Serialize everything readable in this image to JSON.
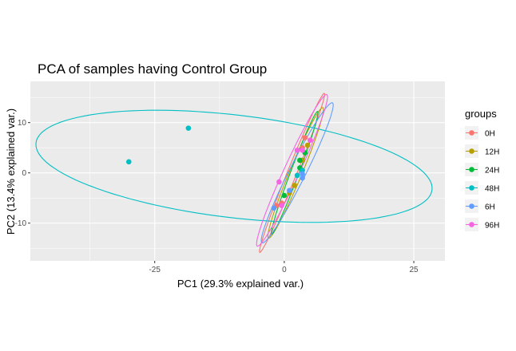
{
  "chart_data": {
    "type": "scatter",
    "title": "PCA of samples having Control Group",
    "xlabel": "PC1 (29.3% explained var.)",
    "ylabel": "PC2 (13.4% explained var.)",
    "xlim": [
      -49,
      31
    ],
    "ylim": [
      -17.5,
      18.2
    ],
    "x_ticks": [
      -25,
      0,
      25
    ],
    "x_tick_labels": [
      "-25",
      "0",
      "25"
    ],
    "y_ticks": [
      -10,
      0,
      10
    ],
    "y_tick_labels": [
      "-10",
      "0",
      "10"
    ],
    "grid": true,
    "legend": {
      "title": "groups",
      "position": "right"
    },
    "series": [
      {
        "name": "0H",
        "color": "#F8766D",
        "points": [
          [
            -1.5,
            -6.5
          ],
          [
            -0.5,
            -6.0
          ],
          [
            4.0,
            7.0
          ],
          [
            3.5,
            5.0
          ]
        ],
        "ellipse": {
          "cx": 1.5,
          "cy": 0.0,
          "rx": 17.0,
          "ry": 0.9,
          "angle": 68.5
        }
      },
      {
        "name": "12H",
        "color": "#B79F00",
        "points": [
          [
            2.0,
            -2.5
          ],
          [
            3.5,
            2.5
          ],
          [
            4.5,
            5.5
          ],
          [
            1.0,
            -4.0
          ]
        ],
        "ellipse": {
          "cx": 2.2,
          "cy": 0.0,
          "rx": 14.0,
          "ry": 1.2,
          "angle": 68
        }
      },
      {
        "name": "24H",
        "color": "#00BA38",
        "points": [
          [
            0.0,
            -4.5
          ],
          [
            3.0,
            1.0
          ],
          [
            3.0,
            2.5
          ],
          [
            4.0,
            4.0
          ]
        ],
        "ellipse": {
          "cx": 2.0,
          "cy": 0.0,
          "rx": 13.0,
          "ry": 0.8,
          "angle": 70
        }
      },
      {
        "name": "48H",
        "color": "#00BFC4",
        "points": [
          [
            -30.0,
            2.2
          ],
          [
            -18.5,
            8.9
          ],
          [
            2.5,
            -0.5
          ],
          [
            3.5,
            0.5
          ]
        ],
        "ellipse": {
          "cx": -9.7,
          "cy": 1.3,
          "rx": 38.5,
          "ry": 10.2,
          "angle": -7
        }
      },
      {
        "name": "6H",
        "color": "#619CFF",
        "points": [
          [
            -2.0,
            -7.0
          ],
          [
            1.0,
            -3.5
          ],
          [
            3.5,
            -0.2
          ],
          [
            3.5,
            -1.0
          ]
        ],
        "ellipse": {
          "cx": 2.5,
          "cy": 0.0,
          "rx": 15.5,
          "ry": 1.6,
          "angle": 64
        }
      },
      {
        "name": "96H",
        "color": "#F564E3",
        "points": [
          [
            -1.0,
            -1.8
          ],
          [
            2.5,
            4.5
          ],
          [
            3.5,
            4.5
          ],
          [
            5.0,
            6.5
          ],
          [
            -0.5,
            -6.5
          ]
        ],
        "ellipse": {
          "cx": 1.5,
          "cy": 0.5,
          "rx": 16.5,
          "ry": 1.5,
          "angle": 66
        }
      }
    ]
  }
}
